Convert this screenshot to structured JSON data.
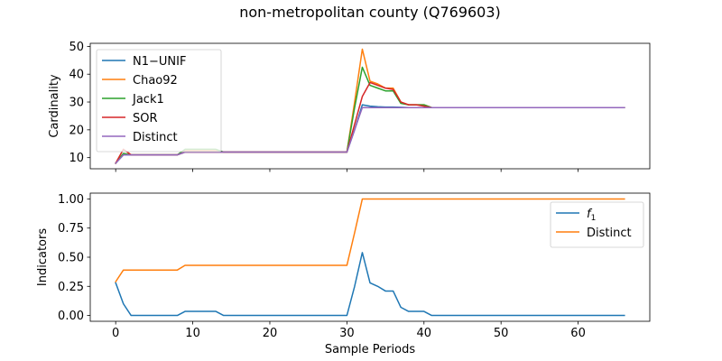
{
  "figure": {
    "title": "non-metropolitan county (Q769603)"
  },
  "chart_data": [
    {
      "type": "line",
      "ylabel": "Cardinality",
      "xlabel": "",
      "xlim": [
        -3.3,
        69.3
      ],
      "ylim": [
        6.0,
        51.1
      ],
      "x_ticks": [
        0,
        10,
        20,
        30,
        40,
        50,
        60
      ],
      "x_tick_labels_visible": false,
      "y_ticks": [
        10,
        20,
        30,
        40,
        50
      ],
      "y_tick_labels": [
        "10",
        "20",
        "30",
        "40",
        "50"
      ],
      "grid": false,
      "legend_position": "top-left",
      "x": [
        0,
        1,
        2,
        3,
        4,
        5,
        6,
        7,
        8,
        9,
        10,
        11,
        12,
        13,
        14,
        15,
        16,
        17,
        18,
        19,
        20,
        21,
        22,
        23,
        24,
        25,
        26,
        27,
        28,
        29,
        30,
        31,
        32,
        33,
        34,
        35,
        36,
        37,
        38,
        39,
        40,
        41,
        42,
        43,
        44,
        45,
        46,
        47,
        48,
        49,
        50,
        51,
        52,
        53,
        54,
        55,
        56,
        57,
        58,
        59,
        60,
        61,
        62,
        63,
        64,
        65,
        66
      ],
      "series": [
        {
          "name": "N1−UNIF",
          "color": "#1f77b4",
          "values": [
            8,
            11,
            11,
            11,
            11,
            11,
            11,
            11,
            11,
            12,
            12,
            12,
            12,
            12,
            12,
            12,
            12,
            12,
            12,
            12,
            12,
            12,
            12,
            12,
            12,
            12,
            12,
            12,
            12,
            12,
            12,
            20,
            29,
            28.5,
            28.3,
            28.2,
            28.2,
            28.1,
            28,
            28,
            28,
            28,
            28,
            28,
            28,
            28,
            28,
            28,
            28,
            28,
            28,
            28,
            28,
            28,
            28,
            28,
            28,
            28,
            28,
            28,
            28,
            28,
            28,
            28,
            28,
            28,
            28
          ]
        },
        {
          "name": "Chao92",
          "color": "#ff7f0e",
          "values": [
            8,
            13,
            11,
            11,
            11,
            11,
            11,
            11,
            11,
            12.5,
            12.5,
            12.5,
            12.5,
            12.5,
            12,
            12,
            12,
            12,
            12,
            12,
            12,
            12,
            12,
            12,
            12,
            12,
            12,
            12,
            12,
            12,
            12,
            30,
            49,
            37.5,
            36.5,
            35,
            35,
            30,
            29,
            29,
            29,
            28,
            28,
            28,
            28,
            28,
            28,
            28,
            28,
            28,
            28,
            28,
            28,
            28,
            28,
            28,
            28,
            28,
            28,
            28,
            28,
            28,
            28,
            28,
            28,
            28,
            28
          ]
        },
        {
          "name": "Jack1",
          "color": "#2ca02c",
          "values": [
            8,
            11.5,
            11,
            11,
            11,
            11,
            11,
            11,
            11,
            13,
            13,
            13,
            13,
            13,
            12,
            12,
            12,
            12,
            12,
            12,
            12,
            12,
            12,
            12,
            12,
            12,
            12,
            12,
            12,
            12,
            12,
            28,
            42.5,
            36,
            35,
            34,
            34,
            29.5,
            29,
            29,
            29,
            28,
            28,
            28,
            28,
            28,
            28,
            28,
            28,
            28,
            28,
            28,
            28,
            28,
            28,
            28,
            28,
            28,
            28,
            28,
            28,
            28,
            28,
            28,
            28,
            28,
            28
          ]
        },
        {
          "name": "SOR",
          "color": "#d62728",
          "values": [
            8,
            13,
            11,
            11,
            11,
            11,
            11,
            11,
            11,
            12,
            12,
            12,
            12,
            12,
            12,
            12,
            12,
            12,
            12,
            12,
            12,
            12,
            12,
            12,
            12,
            12,
            12,
            12,
            12,
            12,
            12,
            22,
            32,
            37,
            36,
            35,
            34.5,
            30,
            29,
            29,
            28.5,
            28,
            28,
            28,
            28,
            28,
            28,
            28,
            28,
            28,
            28,
            28,
            28,
            28,
            28,
            28,
            28,
            28,
            28,
            28,
            28,
            28,
            28,
            28,
            28,
            28,
            28
          ]
        },
        {
          "name": "Distinct",
          "color": "#9467bd",
          "values": [
            8,
            11,
            11,
            11,
            11,
            11,
            11,
            11,
            11,
            12,
            12,
            12,
            12,
            12,
            12,
            12,
            12,
            12,
            12,
            12,
            12,
            12,
            12,
            12,
            12,
            12,
            12,
            12,
            12,
            12,
            12,
            20,
            28,
            28,
            28,
            28,
            28,
            28,
            28,
            28,
            28,
            28,
            28,
            28,
            28,
            28,
            28,
            28,
            28,
            28,
            28,
            28,
            28,
            28,
            28,
            28,
            28,
            28,
            28,
            28,
            28,
            28,
            28,
            28,
            28,
            28,
            28
          ]
        }
      ]
    },
    {
      "type": "line",
      "ylabel": "Indicators",
      "xlabel": "Sample Periods",
      "xlim": [
        -3.3,
        69.3
      ],
      "ylim": [
        -0.05,
        1.05
      ],
      "x_ticks": [
        0,
        10,
        20,
        30,
        40,
        50,
        60
      ],
      "x_tick_labels": [
        "0",
        "10",
        "20",
        "30",
        "40",
        "50",
        "60"
      ],
      "y_ticks": [
        0,
        0.25,
        0.5,
        0.75,
        1
      ],
      "y_tick_labels": [
        "0.00",
        "0.25",
        "0.50",
        "0.75",
        "1.00"
      ],
      "grid": false,
      "legend_position": "top-right",
      "x": [
        0,
        1,
        2,
        3,
        4,
        5,
        6,
        7,
        8,
        9,
        10,
        11,
        12,
        13,
        14,
        15,
        16,
        17,
        18,
        19,
        20,
        21,
        22,
        23,
        24,
        25,
        26,
        27,
        28,
        29,
        30,
        31,
        32,
        33,
        34,
        35,
        36,
        37,
        38,
        39,
        40,
        41,
        42,
        43,
        44,
        45,
        46,
        47,
        48,
        49,
        50,
        51,
        52,
        53,
        54,
        55,
        56,
        57,
        58,
        59,
        60,
        61,
        62,
        63,
        64,
        65,
        66
      ],
      "series": [
        {
          "name": "f",
          "name_subscript": "1",
          "color": "#1f77b4",
          "values": [
            0.28,
            0.1,
            0,
            0,
            0,
            0,
            0,
            0,
            0,
            0.035,
            0.035,
            0.035,
            0.035,
            0.035,
            0,
            0,
            0,
            0,
            0,
            0,
            0,
            0,
            0,
            0,
            0,
            0,
            0,
            0,
            0,
            0,
            0,
            0.25,
            0.54,
            0.28,
            0.25,
            0.21,
            0.21,
            0.07,
            0.035,
            0.035,
            0.035,
            0,
            0,
            0,
            0,
            0,
            0,
            0,
            0,
            0,
            0,
            0,
            0,
            0,
            0,
            0,
            0,
            0,
            0,
            0,
            0,
            0,
            0,
            0,
            0,
            0,
            0
          ]
        },
        {
          "name": "Distinct",
          "color": "#ff7f0e",
          "values": [
            0.29,
            0.39,
            0.39,
            0.39,
            0.39,
            0.39,
            0.39,
            0.39,
            0.39,
            0.43,
            0.43,
            0.43,
            0.43,
            0.43,
            0.43,
            0.43,
            0.43,
            0.43,
            0.43,
            0.43,
            0.43,
            0.43,
            0.43,
            0.43,
            0.43,
            0.43,
            0.43,
            0.43,
            0.43,
            0.43,
            0.43,
            0.71,
            1,
            1,
            1,
            1,
            1,
            1,
            1,
            1,
            1,
            1,
            1,
            1,
            1,
            1,
            1,
            1,
            1,
            1,
            1,
            1,
            1,
            1,
            1,
            1,
            1,
            1,
            1,
            1,
            1,
            1,
            1,
            1,
            1,
            1,
            1
          ]
        }
      ]
    }
  ]
}
